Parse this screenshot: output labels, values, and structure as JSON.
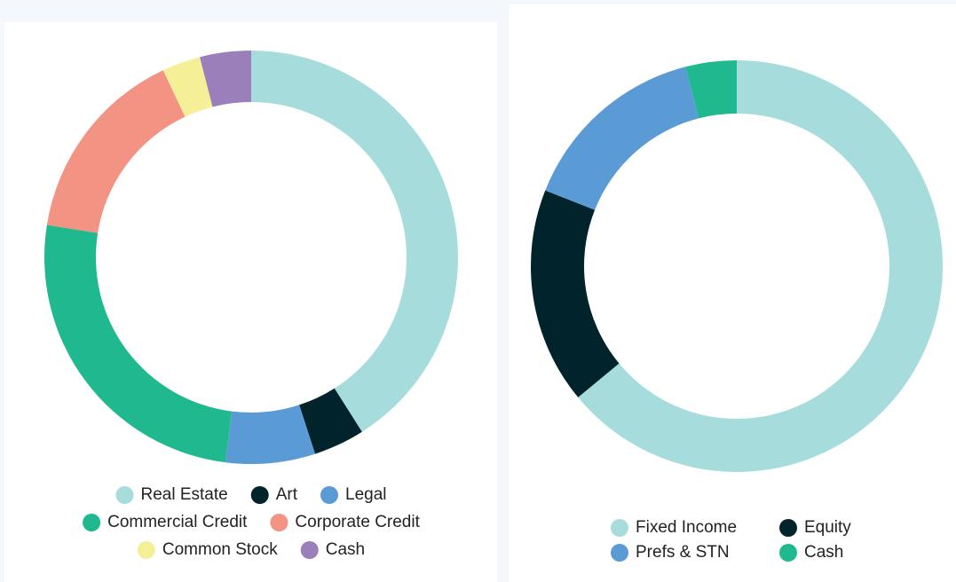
{
  "chart_data": [
    {
      "type": "donut",
      "categories": [
        "Real Estate",
        "Art",
        "Legal",
        "Commercial Credit",
        "Corporate Credit",
        "Common Stock",
        "Cash"
      ],
      "values": [
        41,
        4,
        7,
        25.5,
        15.5,
        3,
        4
      ],
      "colors": [
        "#a6dcdc",
        "#01232b",
        "#5b9bd5",
        "#20b98f",
        "#f29383",
        "#f5ef98",
        "#9b7fbb"
      ],
      "legend": "bottom"
    },
    {
      "type": "donut",
      "categories": [
        "Fixed Income",
        "Equity",
        "Prefs & STN",
        "Cash"
      ],
      "values": [
        64,
        17,
        15,
        4
      ],
      "colors": [
        "#a6dcdc",
        "#01232b",
        "#5b9bd5",
        "#20b98f"
      ],
      "legend": "bottom"
    }
  ]
}
